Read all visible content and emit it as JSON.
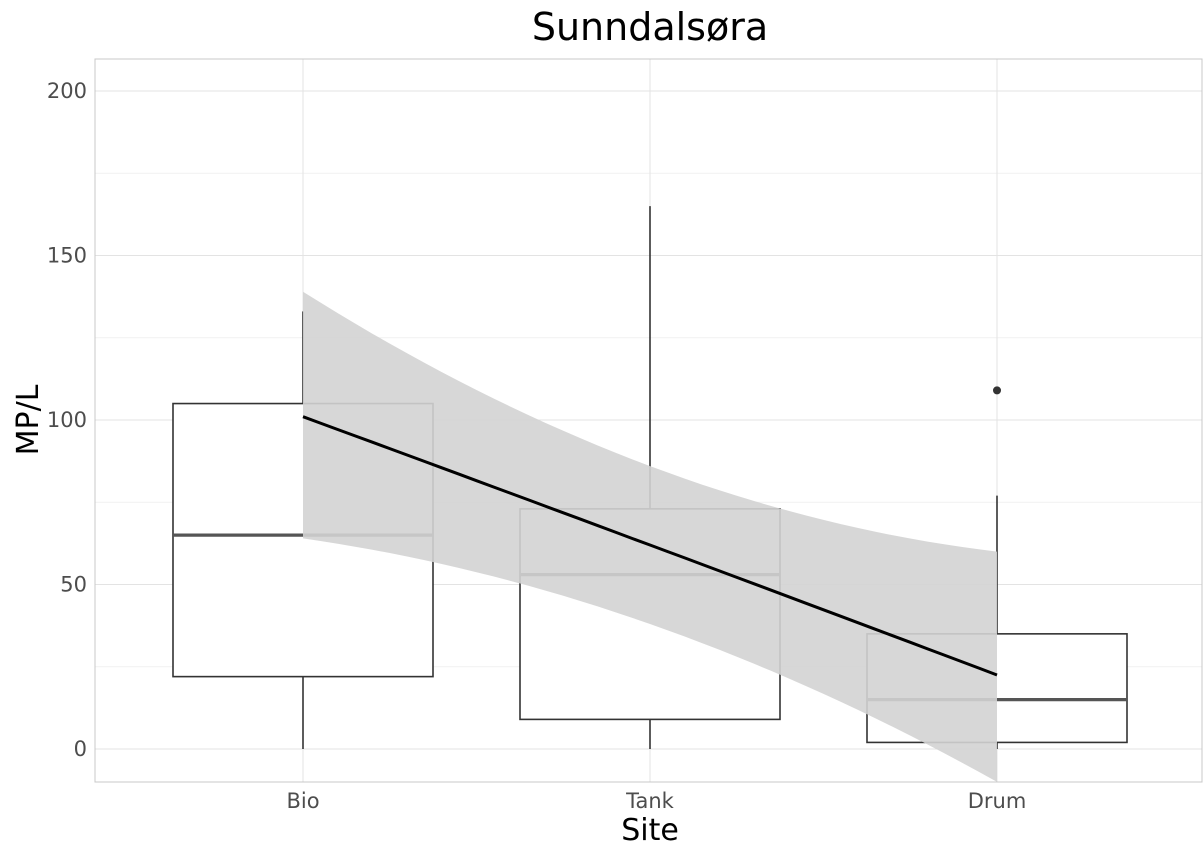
{
  "chart_data": {
    "type": "boxplot",
    "title": "Sunndalsøra",
    "xlabel": "Site",
    "ylabel": "MP/L",
    "categories": [
      "Bio",
      "Tank",
      "Drum"
    ],
    "ylim": [
      -10,
      200
    ],
    "yticks": [
      0,
      50,
      100,
      150,
      200
    ],
    "grid": true,
    "boxes": [
      {
        "category": "Bio",
        "min": 0,
        "q1": 22,
        "median": 65,
        "q3": 105,
        "max": 133,
        "outliers": []
      },
      {
        "category": "Tank",
        "min": 0,
        "q1": 9,
        "median": 53,
        "q3": 73,
        "max": 165,
        "outliers": []
      },
      {
        "category": "Drum",
        "min": 0,
        "q1": 2,
        "median": 15,
        "q3": 35,
        "max": 77,
        "outliers": [
          109
        ]
      }
    ],
    "trend": {
      "type": "glm-smooth",
      "x": [
        "Bio",
        "Tank",
        "Drum"
      ],
      "fit": [
        101,
        62,
        22.5
      ],
      "ci_lower": [
        64,
        38,
        -10
      ],
      "ci_upper": [
        139,
        86,
        60
      ],
      "fill": "#d3d3d3",
      "line_color": "#000000"
    },
    "colors": {
      "box_stroke": "#333333",
      "median": "#555555",
      "grid_major": "#e3e3e3",
      "grid_minor": "#f1f1f1",
      "panel_border": "#c8c8c8"
    }
  }
}
